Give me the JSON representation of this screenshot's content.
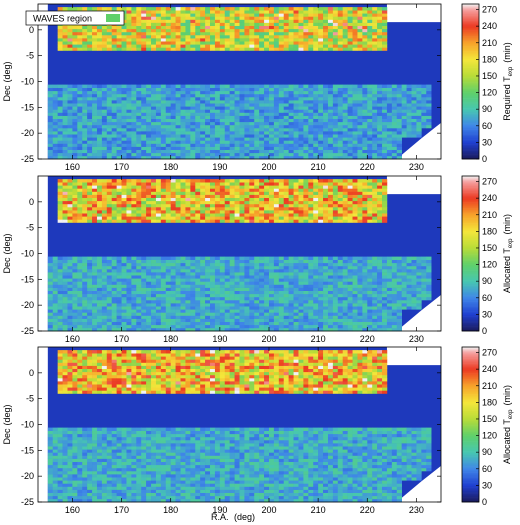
{
  "figure": {
    "xlabel": "R.A.",
    "xlabel_unit": "(deg)",
    "ylabel": "Dec",
    "ylabel_unit": "(deg)",
    "legend_label": "WAVES region"
  },
  "colors": {
    "palette": [
      "#1a1a5a",
      "#1f3fd0",
      "#3f86e8",
      "#47c7b0",
      "#5fd06a",
      "#b8dc38",
      "#f4e63a",
      "#f7a22a",
      "#ec3a22",
      "#f5a0a0",
      "#f2f2f2"
    ],
    "region_bg": "#1b2a9a",
    "waves_north": "#f28b2c",
    "waves_south": "#6fd09a"
  },
  "chart_data": [
    {
      "type": "heatmap",
      "colorbar_label": "Required T",
      "colorbar_sub": "exp",
      "colorbar_unit": "(min)",
      "xlim": [
        153,
        235
      ],
      "ylim": [
        -25,
        5
      ],
      "xticks": [
        160,
        170,
        180,
        190,
        200,
        210,
        220,
        230
      ],
      "yticks": [
        0,
        -5,
        -10,
        -15,
        -20,
        -25
      ],
      "cticks": [
        0,
        30,
        60,
        90,
        120,
        150,
        180,
        210,
        240,
        270
      ],
      "clim": [
        0,
        280
      ],
      "mean_north": 165,
      "mean_south": 72,
      "mean_background": 25
    },
    {
      "type": "heatmap",
      "colorbar_label": "Allocated T",
      "colorbar_sub": "exp",
      "colorbar_unit": "(min)",
      "xlim": [
        153,
        235
      ],
      "ylim": [
        -25,
        5
      ],
      "xticks": [
        160,
        170,
        180,
        190,
        200,
        210,
        220,
        230
      ],
      "yticks": [
        0,
        -5,
        -10,
        -15,
        -20,
        -25
      ],
      "cticks": [
        0,
        30,
        60,
        90,
        120,
        150,
        180,
        210,
        240,
        270
      ],
      "clim": [
        0,
        280
      ],
      "mean_north": 185,
      "mean_south": 78,
      "mean_background": 25
    },
    {
      "type": "heatmap",
      "colorbar_label": "Allocated T",
      "colorbar_sub": "exp",
      "colorbar_unit": "(min)",
      "xlim": [
        153,
        235
      ],
      "ylim": [
        -25,
        5
      ],
      "xticks": [
        160,
        170,
        180,
        190,
        200,
        210,
        220,
        230
      ],
      "yticks": [
        0,
        -5,
        -10,
        -15,
        -20,
        -25
      ],
      "cticks": [
        0,
        30,
        60,
        90,
        120,
        150,
        180,
        210,
        240,
        270
      ],
      "clim": [
        0,
        280
      ],
      "mean_north": 190,
      "mean_south": 78,
      "mean_background": 25
    }
  ]
}
